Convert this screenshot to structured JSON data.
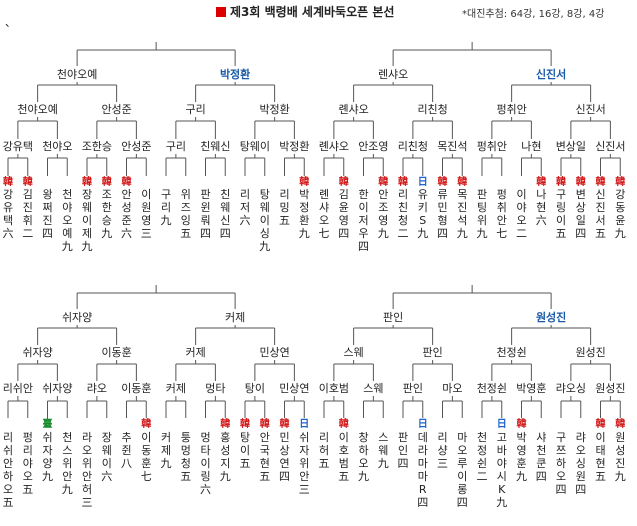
{
  "title": "제3회 백령배 세계바둑오픈 본선",
  "note": "*대진추첨: 64강, 16강, 8강, 4강",
  "mark": "、",
  "colors": {
    "line": "#555555",
    "advance": "#1a5aa8",
    "badge_red": "#d21c1c",
    "badge_blue": "#1f63d0",
    "badge_green": "#1c8a2e"
  },
  "brackets": [
    {
      "l32": [
        "천야오예",
        "박정환",
        "렌샤오",
        "신진서"
      ],
      "l32_adv": [
        false,
        true,
        false,
        true
      ],
      "l16": [
        "천야오예",
        "안성준",
        "구리",
        "박정환",
        "롄샤오",
        "리친청",
        "펑취안",
        "신진서"
      ],
      "l16_adv": [
        false,
        false,
        false,
        false,
        false,
        false,
        false,
        false
      ],
      "l64": [
        "강유택",
        "천야오",
        "조한승",
        "안성준",
        "구리",
        "친웨신",
        "탕웨이",
        "박정환",
        "롄샤오",
        "안조영",
        "리친청",
        "목진석",
        "펑취안",
        "나현",
        "변상일",
        "신진서"
      ],
      "players": [
        {
          "badge": "red",
          "text": "강유택六"
        },
        {
          "badge": "red",
          "text": "김진휘二"
        },
        {
          "badge": "",
          "text": "왕쩌진四"
        },
        {
          "badge": "",
          "text": "천야오예九"
        },
        {
          "badge": "red",
          "text": "장웨이제九"
        },
        {
          "badge": "red",
          "text": "조한승九"
        },
        {
          "badge": "red",
          "text": "안성준六"
        },
        {
          "badge": "",
          "text": "이원영三"
        },
        {
          "badge": "",
          "text": "구리九"
        },
        {
          "badge": "",
          "text": "위즈잉五"
        },
        {
          "badge": "",
          "text": "판윈뤄四"
        },
        {
          "badge": "",
          "text": "친웨신四"
        },
        {
          "badge": "",
          "text": "리저六"
        },
        {
          "badge": "",
          "text": "탕웨이싱九"
        },
        {
          "badge": "",
          "text": "리밍五"
        },
        {
          "badge": "red",
          "text": "박정환九"
        },
        {
          "badge": "",
          "text": "롄샤오七"
        },
        {
          "badge": "red",
          "text": "김윤영四"
        },
        {
          "badge": "",
          "text": "한이저우四"
        },
        {
          "badge": "red",
          "text": "안조영九"
        },
        {
          "badge": "red",
          "text": "리친청二"
        },
        {
          "badge": "blue",
          "text": "유키S九"
        },
        {
          "badge": "red",
          "text": "류민형四"
        },
        {
          "badge": "red",
          "text": "목진석九"
        },
        {
          "badge": "",
          "text": "판팅위九"
        },
        {
          "badge": "",
          "text": "펑취안七"
        },
        {
          "badge": "",
          "text": "이야오二"
        },
        {
          "badge": "red",
          "text": "나현六"
        },
        {
          "badge": "red",
          "text": "구링이五"
        },
        {
          "badge": "red",
          "text": "변상일四"
        },
        {
          "badge": "red",
          "text": "신진서五"
        },
        {
          "badge": "red",
          "text": "강동윤九"
        }
      ]
    },
    {
      "l32": [
        "쉬자양",
        "커제",
        "판인",
        "원성진"
      ],
      "l32_adv": [
        false,
        false,
        false,
        true
      ],
      "l16": [
        "쉬자양",
        "이동훈",
        "커제",
        "민상연",
        "스웨",
        "판인",
        "천정쉰",
        "원성진"
      ],
      "l16_adv": [
        false,
        false,
        false,
        false,
        false,
        false,
        false,
        false
      ],
      "l64": [
        "리쉬안",
        "쉬자양",
        "랴오",
        "이동훈",
        "커제",
        "멍타",
        "탕이",
        "민상연",
        "이호범",
        "스웨",
        "판인",
        "마오",
        "천정쉰",
        "박영훈",
        "랴오싱",
        "원성진"
      ],
      "players": [
        {
          "badge": "",
          "text": "리쉬안하오五"
        },
        {
          "badge": "",
          "text": "펑리야오五"
        },
        {
          "badge": "green",
          "text": "쉬자양九"
        },
        {
          "badge": "",
          "text": "천스위안九"
        },
        {
          "badge": "",
          "text": "라오위안허三"
        },
        {
          "badge": "",
          "text": "장웨이六"
        },
        {
          "badge": "",
          "text": "추쥔八"
        },
        {
          "badge": "red",
          "text": "이동훈七"
        },
        {
          "badge": "",
          "text": "커제九"
        },
        {
          "badge": "",
          "text": "퉁멍청五"
        },
        {
          "badge": "",
          "text": "멍타이링六"
        },
        {
          "badge": "red",
          "text": "홍성지九"
        },
        {
          "badge": "red",
          "text": "탕이五"
        },
        {
          "badge": "red",
          "text": "안국현五"
        },
        {
          "badge": "red",
          "text": "민상연四"
        },
        {
          "badge": "blue",
          "text": "쉬자위안三"
        },
        {
          "badge": "",
          "text": "리허五"
        },
        {
          "badge": "red",
          "text": "이호범五"
        },
        {
          "badge": "",
          "text": "창하오九"
        },
        {
          "badge": "",
          "text": "스웨九"
        },
        {
          "badge": "",
          "text": "판인四"
        },
        {
          "badge": "blue",
          "text": "데라마마R四"
        },
        {
          "badge": "",
          "text": "리샹三"
        },
        {
          "badge": "",
          "text": "마오루이롱四"
        },
        {
          "badge": "",
          "text": "천정쉰二"
        },
        {
          "badge": "blue",
          "text": "고바야시K九"
        },
        {
          "badge": "red",
          "text": "박영훈九"
        },
        {
          "badge": "",
          "text": "샤천쿤四"
        },
        {
          "badge": "",
          "text": "구쯔하오四"
        },
        {
          "badge": "",
          "text": "랴오싱원四"
        },
        {
          "badge": "red",
          "text": "이태현五"
        },
        {
          "badge": "red",
          "text": "원성진九"
        }
      ]
    }
  ]
}
